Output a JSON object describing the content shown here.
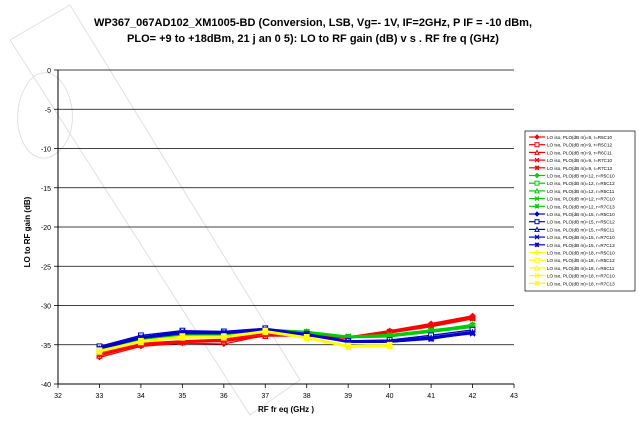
{
  "chart_data": {
    "type": "line",
    "title_line1": "WP367_067AD102_XM1005-BD (Conversion, LSB, Vg=-   1V, IF=2GHz, P   IF = -10 dBm,",
    "title_line2": "PLO=   +9 to +18dBm,    21 j an 0 5): LO to RF gain (dB) v s . RF fre  q (GHz)",
    "xlabel": "RF fr eq (GHz )",
    "ylabel": "LO to RF  gain  (dB)",
    "xlim": [
      32,
      43
    ],
    "ylim": [
      -40,
      0
    ],
    "xticks": [
      "32",
      "33",
      "34",
      "35",
      "36",
      "37",
      "38",
      "39",
      "40",
      "41",
      "42",
      "43"
    ],
    "yticks": [
      "0",
      "-5",
      "-10",
      "-15",
      "-20",
      "-25",
      "-30",
      "-35",
      "-40"
    ],
    "grid": "horizontal",
    "legend_position": "right",
    "x": [
      33,
      34,
      35,
      36,
      37,
      38,
      39,
      40,
      41,
      42
    ],
    "series": [
      {
        "name": "LO iso, PLO(dB m)=9, r=R5C10",
        "color": "#ff0000",
        "marker": "diamond",
        "values": [
          -36.6,
          -35.2,
          -34.8,
          -34.9,
          -33.8,
          -33.8,
          -34.0,
          -33.2,
          -32.3,
          -31.3
        ]
      },
      {
        "name": "LO iso, PLO(dB m)=9, r=R5C12",
        "color": "#ff0000",
        "marker": "square",
        "values": [
          -36.2,
          -34.9,
          -34.6,
          -34.4,
          -33.6,
          -33.7,
          -34.1,
          -33.4,
          -32.6,
          -31.6
        ]
      },
      {
        "name": "LO iso, PLO(dB m)=9, r=R6C11",
        "color": "#ff0000",
        "marker": "triangle",
        "values": [
          -36.4,
          -35.0,
          -34.7,
          -34.6,
          -33.9,
          -33.9,
          -34.2,
          -33.3,
          -32.4,
          -31.4
        ]
      },
      {
        "name": "LO iso, PLO(dB m)=9, r=R7C10",
        "color": "#ff0000",
        "marker": "x",
        "values": [
          -36.0,
          -34.8,
          -34.5,
          -34.3,
          -33.5,
          -33.6,
          -34.0,
          -33.5,
          -32.7,
          -31.7
        ]
      },
      {
        "name": "LO iso, PLO(dB m)=9, r=R7C13",
        "color": "#ff0000",
        "marker": "star",
        "values": [
          -36.3,
          -35.1,
          -34.7,
          -34.5,
          -33.8,
          -33.8,
          -34.1,
          -33.3,
          -32.5,
          -31.5
        ]
      },
      {
        "name": "LO iso, PLO(dB m)=12, r=R5C10",
        "color": "#00cc00",
        "marker": "diamond",
        "values": [
          -35.6,
          -34.2,
          -33.6,
          -33.8,
          -33.1,
          -33.3,
          -34.0,
          -33.8,
          -33.2,
          -32.4
        ]
      },
      {
        "name": "LO iso, PLO(dB m)=12, r=R5C12",
        "color": "#00cc00",
        "marker": "square",
        "values": [
          -35.4,
          -34.0,
          -33.4,
          -33.6,
          -33.0,
          -33.4,
          -34.0,
          -33.9,
          -33.3,
          -32.6
        ]
      },
      {
        "name": "LO iso, PLO(dB m)=12, r=R6C11",
        "color": "#00cc00",
        "marker": "triangle",
        "values": [
          -35.7,
          -34.3,
          -33.7,
          -33.9,
          -33.2,
          -33.5,
          -34.1,
          -33.9,
          -33.4,
          -32.7
        ]
      },
      {
        "name": "LO iso, PLO(dB m)=12, r=R7C10",
        "color": "#00cc00",
        "marker": "x",
        "values": [
          -35.5,
          -34.1,
          -33.5,
          -33.7,
          -33.0,
          -33.3,
          -33.9,
          -33.7,
          -33.1,
          -32.5
        ]
      },
      {
        "name": "LO iso, PLO(dB m)=12, r=R7C13",
        "color": "#00cc00",
        "marker": "star",
        "values": [
          -35.8,
          -34.3,
          -33.8,
          -34.0,
          -33.2,
          -33.5,
          -34.1,
          -34.0,
          -33.4,
          -32.8
        ]
      },
      {
        "name": "LO iso, PLO(dB m)=15, r=R5C10",
        "color": "#0000cc",
        "marker": "diamond",
        "values": [
          -35.3,
          -34.0,
          -33.4,
          -33.4,
          -33.0,
          -33.6,
          -34.6,
          -34.5,
          -34.0,
          -33.3
        ]
      },
      {
        "name": "LO iso, PLO(dB m)=15, r=R5C12",
        "color": "#0000cc",
        "marker": "square",
        "values": [
          -35.2,
          -33.8,
          -33.2,
          -33.3,
          -32.9,
          -33.6,
          -34.5,
          -34.4,
          -33.8,
          -33.1
        ]
      },
      {
        "name": "LO iso, PLO(dB m)=15, r=R6C11",
        "color": "#0000cc",
        "marker": "triangle",
        "values": [
          -35.5,
          -34.1,
          -33.5,
          -33.5,
          -33.1,
          -33.7,
          -34.7,
          -34.6,
          -34.1,
          -33.4
        ]
      },
      {
        "name": "LO iso, PLO(dB m)=15, r=R7C10",
        "color": "#0000cc",
        "marker": "x",
        "values": [
          -35.4,
          -34.0,
          -33.3,
          -33.4,
          -33.0,
          -33.6,
          -34.6,
          -34.6,
          -34.2,
          -33.6
        ]
      },
      {
        "name": "LO iso, PLO(dB m)=15, r=R7C13",
        "color": "#0000cc",
        "marker": "star",
        "values": [
          -35.6,
          -34.2,
          -33.6,
          -33.6,
          -33.2,
          -33.8,
          -34.7,
          -34.7,
          -34.3,
          -33.5
        ]
      },
      {
        "name": "LO iso, PLO(dB m)=18, r=R5C10",
        "color": "#ffff00",
        "marker": "diamond",
        "values": [
          -35.8,
          -34.6,
          -34.0,
          -34.0,
          -33.3,
          -34.1,
          -35.2,
          -35.1,
          null,
          null
        ]
      },
      {
        "name": "LO iso, PLO(dB m)=18, r=R5C12",
        "color": "#ffff00",
        "marker": "square",
        "values": [
          -35.7,
          -34.5,
          -33.9,
          -33.9,
          -33.2,
          -34.0,
          -35.1,
          -35.0,
          null,
          null
        ]
      },
      {
        "name": "LO iso, PLO(dB m)=18, r=R6C11",
        "color": "#ffff00",
        "marker": "triangle",
        "values": [
          -35.9,
          -34.7,
          -34.1,
          -34.1,
          -33.4,
          -34.2,
          -35.3,
          -35.2,
          null,
          null
        ]
      },
      {
        "name": "LO iso, PLO(dB m)=18, r=R7C10",
        "color": "#ffff00",
        "marker": "x",
        "values": [
          -35.8,
          -34.6,
          -34.0,
          -34.0,
          -33.3,
          -34.1,
          -35.2,
          -35.1,
          null,
          null
        ]
      },
      {
        "name": "LO iso, PLO(dB m)=18, r=R7C13",
        "color": "#ffff00",
        "marker": "star",
        "values": [
          -35.9,
          -34.7,
          -34.1,
          -34.1,
          -33.4,
          -34.2,
          -35.3,
          -35.2,
          null,
          null
        ]
      }
    ]
  }
}
